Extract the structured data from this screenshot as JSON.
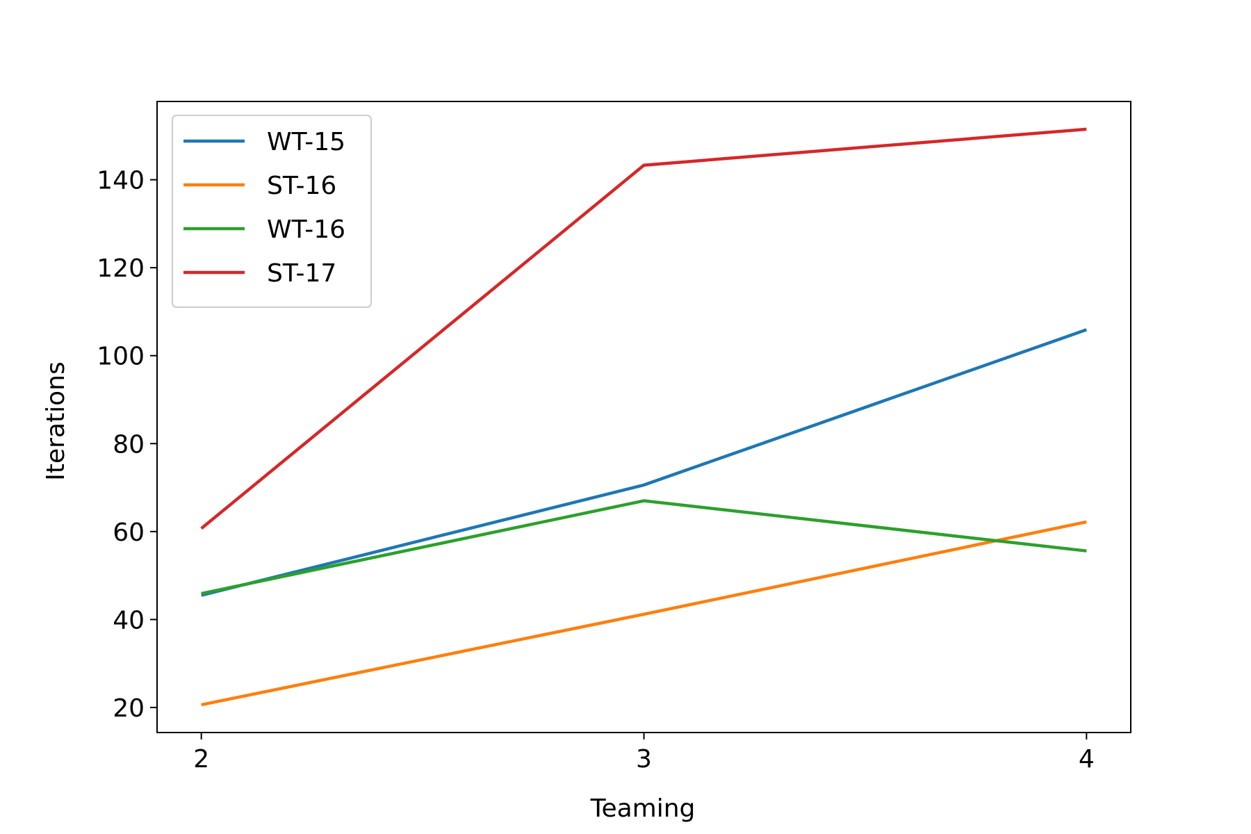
{
  "chart_data": {
    "type": "line",
    "title": "",
    "xlabel": "Teaming",
    "ylabel": "Iterations",
    "x": [
      2,
      3,
      4
    ],
    "xticks": [
      2,
      3,
      4
    ],
    "yticks": [
      20,
      40,
      60,
      80,
      100,
      120,
      140
    ],
    "xlim": [
      1.9,
      4.1
    ],
    "ylim": [
      14.3,
      157.8
    ],
    "grid": false,
    "legend_position": "top-left",
    "series": [
      {
        "name": "WT-15",
        "color": "#1f77b4",
        "values": [
          45.5,
          70.6,
          105.9
        ]
      },
      {
        "name": "ST-16",
        "color": "#ff7f0e",
        "values": [
          20.6,
          41.2,
          62.2
        ]
      },
      {
        "name": "WT-16",
        "color": "#2ca02c",
        "values": [
          45.9,
          67.0,
          55.6
        ]
      },
      {
        "name": "ST-17",
        "color": "#d62728",
        "values": [
          60.7,
          143.3,
          151.5
        ]
      }
    ]
  }
}
